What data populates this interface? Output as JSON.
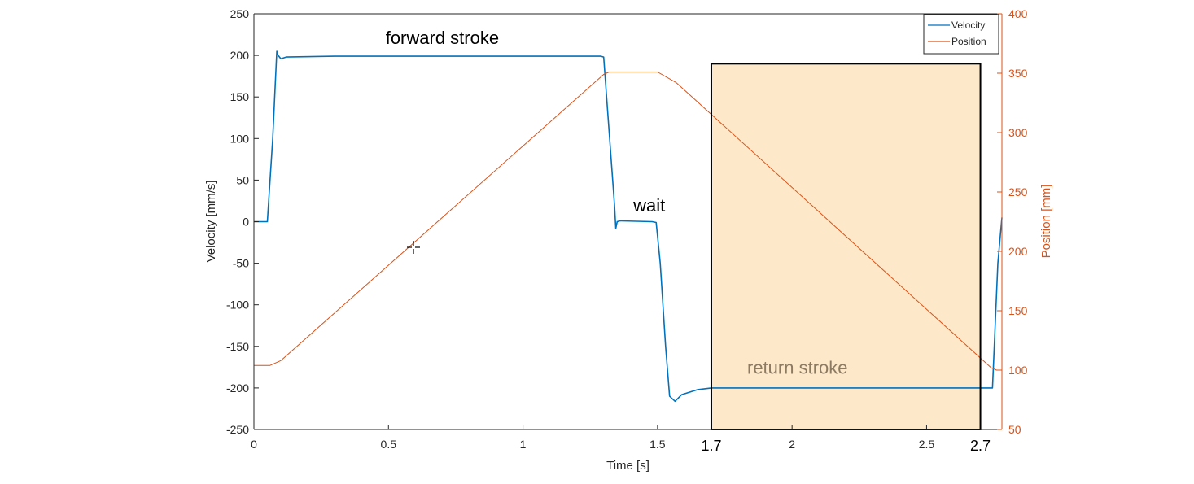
{
  "chart_data": {
    "type": "line",
    "xlabel": "Time [s]",
    "ylabel_left": "Velocity [mm/s]",
    "ylabel_right": "Position [mm]",
    "xlim": [
      0,
      2.78
    ],
    "ylim_left": [
      -250,
      250
    ],
    "ylim_right": [
      50,
      400
    ],
    "x_ticks": [
      0,
      0.5,
      1,
      1.5,
      2,
      2.5
    ],
    "y_ticks_left": [
      -250,
      -200,
      -150,
      -100,
      -50,
      0,
      50,
      100,
      150,
      200,
      250
    ],
    "y_ticks_right": [
      50,
      100,
      150,
      200,
      250,
      300,
      350,
      400
    ],
    "grid": false,
    "legend_position": "top-right",
    "colors": {
      "velocity": "#0072BD",
      "position": "#D95319",
      "highlight_fill": "#FDE9C9",
      "highlight_edge": "#000000",
      "annotation_highlight": "#8C7B62"
    },
    "series": [
      {
        "name": "Velocity",
        "axis": "left",
        "color": "#0072BD",
        "points": [
          [
            0,
            0
          ],
          [
            0.05,
            0
          ],
          [
            0.07,
            100
          ],
          [
            0.085,
            205
          ],
          [
            0.09,
            200
          ],
          [
            0.1,
            196
          ],
          [
            0.12,
            198
          ],
          [
            0.3,
            199
          ],
          [
            0.6,
            199
          ],
          [
            0.9,
            199
          ],
          [
            1.2,
            199
          ],
          [
            1.29,
            199
          ],
          [
            1.3,
            198
          ],
          [
            1.34,
            20
          ],
          [
            1.345,
            -8
          ],
          [
            1.35,
            0
          ],
          [
            1.36,
            1
          ],
          [
            1.48,
            0
          ],
          [
            1.495,
            -1
          ],
          [
            1.51,
            -50
          ],
          [
            1.53,
            -150
          ],
          [
            1.545,
            -210
          ],
          [
            1.565,
            -216
          ],
          [
            1.59,
            -208
          ],
          [
            1.65,
            -202
          ],
          [
            1.7,
            -200
          ],
          [
            2.0,
            -200
          ],
          [
            2.5,
            -200
          ],
          [
            2.7,
            -200
          ],
          [
            2.745,
            -200
          ],
          [
            2.765,
            -50
          ],
          [
            2.78,
            5
          ]
        ]
      },
      {
        "name": "Position",
        "axis": "right",
        "color": "#D95319",
        "points": [
          [
            0,
            104
          ],
          [
            0.06,
            104
          ],
          [
            0.1,
            108
          ],
          [
            1.3,
            349
          ],
          [
            1.32,
            351
          ],
          [
            1.5,
            351
          ],
          [
            1.57,
            342
          ],
          [
            2.74,
            102
          ],
          [
            2.76,
            100
          ],
          [
            2.78,
            100
          ]
        ]
      }
    ],
    "annotations": [
      {
        "text": "forward stroke",
        "x": 0.7,
        "y": 214
      },
      {
        "text": "wait",
        "x": 1.41,
        "y": 12
      },
      {
        "text": "return stroke",
        "x": 2.02,
        "y": -183
      }
    ],
    "highlight": {
      "x_range": [
        1.7,
        2.7
      ],
      "y_range_left": [
        -250,
        190
      ],
      "labels": [
        "1.7",
        "2.7"
      ]
    }
  }
}
